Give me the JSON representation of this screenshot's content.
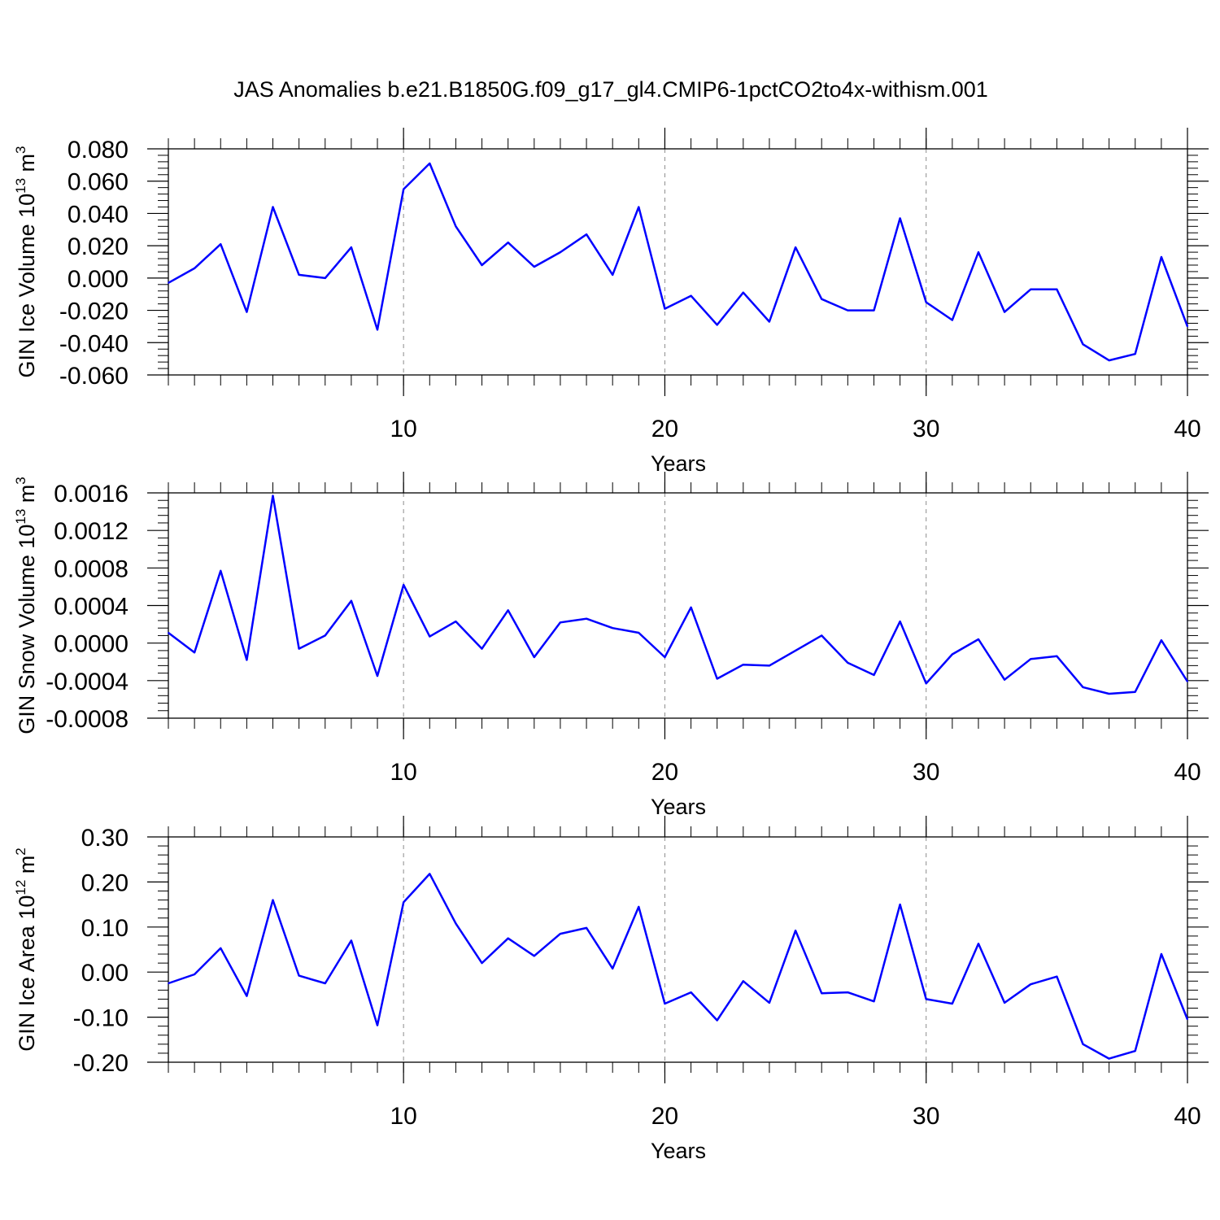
{
  "title": "JAS Anomalies b.e21.B1850G.f09_g17_gl4.CMIP6-1pctCO2to4x-withism.001",
  "chart_data": [
    {
      "type": "line",
      "ylabel": "GIN Ice Volume 10",
      "ylabel_sup": "13",
      "ylabel_unit": " m",
      "ylabel_unit_sup": "3",
      "xlabel": "Years",
      "xlim": [
        1,
        40
      ],
      "ylim": [
        -0.06,
        0.08
      ],
      "x_ticks": [
        10,
        20,
        30,
        40
      ],
      "y_ticks": [
        -0.06,
        -0.04,
        -0.02,
        0.0,
        0.02,
        0.04,
        0.06,
        0.08
      ],
      "y_tick_labels": [
        "-0.060",
        "-0.040",
        "-0.020",
        "0.000",
        "0.020",
        "0.040",
        "0.060",
        "0.080"
      ],
      "series_color": "#0000ff",
      "gridlines_x": [
        10,
        20,
        30
      ],
      "x": [
        1,
        2,
        3,
        4,
        5,
        6,
        7,
        8,
        9,
        10,
        11,
        12,
        13,
        14,
        15,
        16,
        17,
        18,
        19,
        20,
        21,
        22,
        23,
        24,
        25,
        26,
        27,
        28,
        29,
        30,
        31,
        32,
        33,
        34,
        35,
        36,
        37,
        38,
        39,
        40
      ],
      "values": [
        -0.003,
        0.006,
        0.021,
        -0.021,
        0.044,
        0.002,
        0.0,
        0.019,
        -0.032,
        0.055,
        0.071,
        0.032,
        0.008,
        0.022,
        0.007,
        0.016,
        0.027,
        0.002,
        0.044,
        -0.019,
        -0.011,
        -0.029,
        -0.009,
        -0.027,
        0.019,
        -0.013,
        -0.02,
        -0.02,
        0.037,
        -0.015,
        -0.026,
        0.016,
        -0.021,
        -0.007,
        -0.007,
        -0.041,
        -0.051,
        -0.047,
        0.013,
        -0.03
      ]
    },
    {
      "type": "line",
      "ylabel": "GIN Snow Volume 10",
      "ylabel_sup": "13",
      "ylabel_unit": " m",
      "ylabel_unit_sup": "3",
      "xlabel": "Years",
      "xlim": [
        1,
        40
      ],
      "ylim": [
        -0.0008,
        0.0016
      ],
      "x_ticks": [
        10,
        20,
        30,
        40
      ],
      "y_ticks": [
        -0.0008,
        -0.0004,
        0.0,
        0.0004,
        0.0008,
        0.0012,
        0.0016
      ],
      "y_tick_labels": [
        "-0.0008",
        "-0.0004",
        "0.0000",
        "0.0004",
        "0.0008",
        "0.0012",
        "0.0016"
      ],
      "series_color": "#0000ff",
      "gridlines_x": [
        10,
        20,
        30
      ],
      "x": [
        1,
        2,
        3,
        4,
        5,
        6,
        7,
        8,
        9,
        10,
        11,
        12,
        13,
        14,
        15,
        16,
        17,
        18,
        19,
        20,
        21,
        22,
        23,
        24,
        25,
        26,
        27,
        28,
        29,
        30,
        31,
        32,
        33,
        34,
        35,
        36,
        37,
        38,
        39,
        40
      ],
      "values": [
        0.00011,
        -0.0001,
        0.00077,
        -0.00018,
        0.00157,
        -6e-05,
        8e-05,
        0.00045,
        -0.00035,
        0.00062,
        7e-05,
        0.00023,
        -6e-05,
        0.00035,
        -0.00015,
        0.00022,
        0.00026,
        0.00016,
        0.00011,
        -0.00015,
        0.00038,
        -0.00038,
        -0.00023,
        -0.00024,
        -8e-05,
        8e-05,
        -0.00021,
        -0.00034,
        0.00023,
        -0.00043,
        -0.00012,
        4e-05,
        -0.00039,
        -0.00017,
        -0.00014,
        -0.00047,
        -0.00054,
        -0.00052,
        3e-05,
        -0.00041
      ]
    },
    {
      "type": "line",
      "ylabel": "GIN Ice Area 10",
      "ylabel_sup": "12",
      "ylabel_unit": " m",
      "ylabel_unit_sup": "2",
      "xlabel": "Years",
      "xlim": [
        1,
        40
      ],
      "ylim": [
        -0.2,
        0.3
      ],
      "x_ticks": [
        10,
        20,
        30,
        40
      ],
      "y_ticks": [
        -0.2,
        -0.1,
        0.0,
        0.1,
        0.2,
        0.3
      ],
      "y_tick_labels": [
        "-0.20",
        "-0.10",
        "0.00",
        "0.10",
        "0.20",
        "0.30"
      ],
      "series_color": "#0000ff",
      "gridlines_x": [
        10,
        20,
        30
      ],
      "x": [
        1,
        2,
        3,
        4,
        5,
        6,
        7,
        8,
        9,
        10,
        11,
        12,
        13,
        14,
        15,
        16,
        17,
        18,
        19,
        20,
        21,
        22,
        23,
        24,
        25,
        26,
        27,
        28,
        29,
        30,
        31,
        32,
        33,
        34,
        35,
        36,
        37,
        38,
        39,
        40
      ],
      "values": [
        -0.025,
        -0.005,
        0.053,
        -0.053,
        0.16,
        -0.008,
        -0.025,
        0.07,
        -0.118,
        0.155,
        0.218,
        0.108,
        0.02,
        0.075,
        0.036,
        0.085,
        0.098,
        0.008,
        0.145,
        -0.07,
        -0.045,
        -0.107,
        -0.02,
        -0.068,
        0.092,
        -0.047,
        -0.045,
        -0.065,
        0.15,
        -0.06,
        -0.07,
        0.063,
        -0.068,
        -0.027,
        -0.01,
        -0.16,
        -0.192,
        -0.175,
        0.04,
        -0.105
      ]
    }
  ]
}
